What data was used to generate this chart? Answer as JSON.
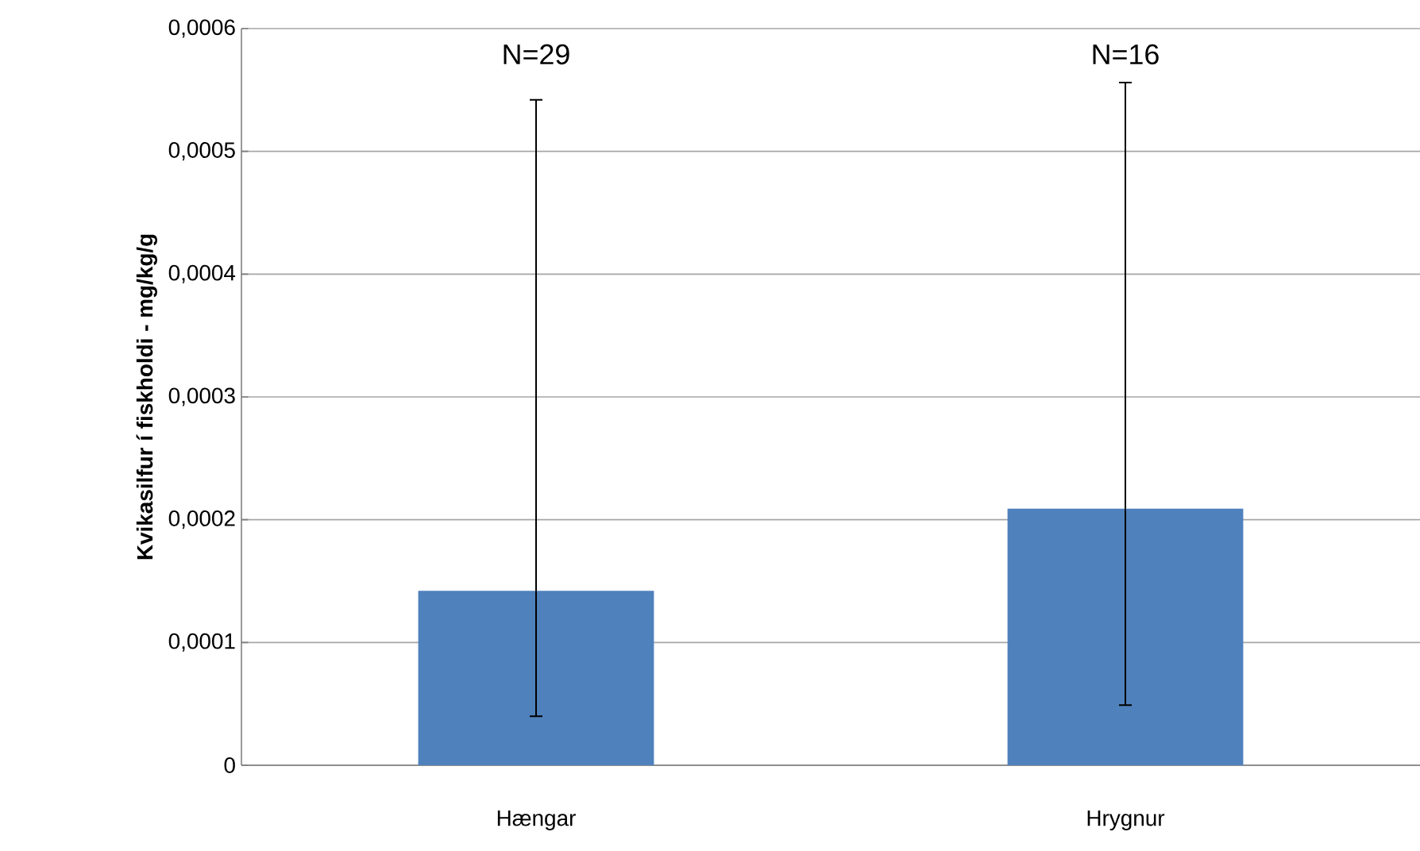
{
  "chart_data": {
    "type": "bar",
    "ylabel": "Kvikasilfur í fiskholdi - mg/kg/g",
    "categories": [
      "Hængar",
      "Hrygnur"
    ],
    "values": [
      0.000142,
      0.000209
    ],
    "errors": [
      [
        4e-05,
        0.000542
      ],
      [
        4.9e-05,
        0.000556
      ]
    ],
    "color": "#4f81bd",
    "ylim": [
      0,
      0.0006
    ],
    "yticks": [
      0,
      {
        "value": 0.0001,
        "label": "0,0001"
      },
      {
        "value": 0.0002,
        "label": "0,0002"
      },
      {
        "value": 0.0003,
        "label": "0,0003"
      },
      {
        "value": 0.0004,
        "label": "0,0004"
      },
      {
        "value": 0.0005,
        "label": "0,0005"
      },
      {
        "value": 0.0006,
        "label": "0,0006"
      }
    ],
    "grid": "y",
    "annotations": [
      "N=29",
      "N=16"
    ]
  }
}
